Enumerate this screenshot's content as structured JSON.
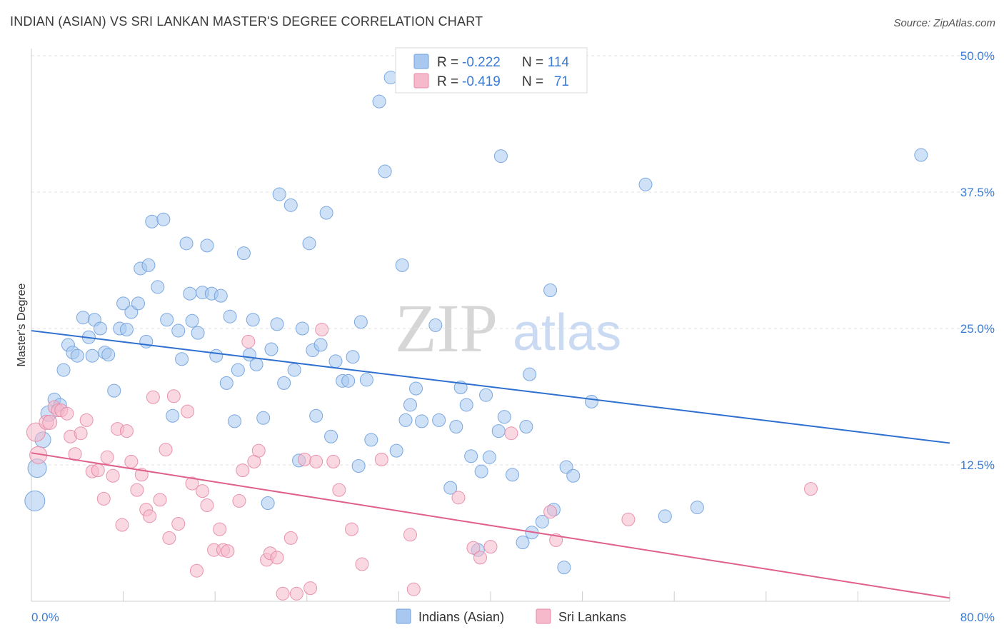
{
  "header": {
    "title": "INDIAN (ASIAN) VS SRI LANKAN MASTER'S DEGREE CORRELATION CHART",
    "source": "Source: ZipAtlas.com"
  },
  "watermark": {
    "zip": "ZIP",
    "atlas": "atlas"
  },
  "legend": {
    "rows": [
      {
        "r_label": "R =",
        "r_value": "-0.222",
        "n_label": "N =",
        "n_value": "114",
        "color": "#a8c8f0"
      },
      {
        "r_label": "R =",
        "r_value": "-0.419",
        "n_label": "N =",
        "n_value": "71",
        "color": "#f6b8cb"
      }
    ]
  },
  "bottom_legend": [
    {
      "label": "Indians (Asian)",
      "color": "#a8c8f0"
    },
    {
      "label": "Sri Lankans",
      "color": "#f6b8cb"
    }
  ],
  "chart_data": {
    "type": "scatter",
    "title": "INDIAN (ASIAN) VS SRI LANKAN MASTER'S DEGREE CORRELATION CHART",
    "ylabel": "Master's Degree",
    "xlabel": "",
    "xlim": [
      0,
      80
    ],
    "ylim": [
      0,
      50
    ],
    "x_tick_labels": [
      "0.0%",
      "80.0%"
    ],
    "y_ticks": [
      12.5,
      25.0,
      37.5,
      50.0
    ],
    "y_tick_labels": [
      "12.5%",
      "25.0%",
      "37.5%",
      "50.0%"
    ],
    "grid": "horizontal dashed",
    "legend_position": "top-center",
    "series": [
      {
        "name": "Indians (Asian)",
        "color": "#a8c8f0",
        "stroke": "#6fa0dc",
        "trend": {
          "x": [
            0,
            80
          ],
          "y": [
            24.8,
            14.5
          ],
          "color": "#2e6fd0"
        },
        "points": [
          [
            0.3,
            9.2,
            14
          ],
          [
            0.5,
            12.2,
            13
          ],
          [
            1.0,
            14.8,
            11
          ],
          [
            1.5,
            17.2,
            11
          ],
          [
            2.0,
            18.5,
            9
          ],
          [
            2.5,
            18.0,
            9
          ],
          [
            2.8,
            21.2,
            9
          ],
          [
            3.2,
            23.5,
            9
          ],
          [
            3.6,
            22.8,
            9
          ],
          [
            4.0,
            22.5,
            9
          ],
          [
            4.5,
            26.0,
            9
          ],
          [
            5.0,
            24.2,
            9
          ],
          [
            5.3,
            22.5,
            9
          ],
          [
            5.5,
            25.8,
            9
          ],
          [
            6.0,
            25.0,
            9
          ],
          [
            6.4,
            22.8,
            9
          ],
          [
            6.7,
            22.6,
            9
          ],
          [
            7.2,
            19.3,
            9
          ],
          [
            7.7,
            25.0,
            9
          ],
          [
            8.0,
            27.3,
            9
          ],
          [
            8.3,
            24.9,
            9
          ],
          [
            8.7,
            26.5,
            9
          ],
          [
            9.3,
            27.3,
            9
          ],
          [
            9.5,
            30.5,
            9
          ],
          [
            10.0,
            23.8,
            9
          ],
          [
            10.2,
            30.8,
            9
          ],
          [
            10.5,
            34.8,
            9
          ],
          [
            11.0,
            28.8,
            9
          ],
          [
            11.5,
            35.0,
            9
          ],
          [
            11.8,
            25.8,
            9
          ],
          [
            12.3,
            17.0,
            9
          ],
          [
            12.8,
            24.8,
            9
          ],
          [
            13.1,
            22.2,
            9
          ],
          [
            13.5,
            32.8,
            9
          ],
          [
            13.8,
            28.2,
            9
          ],
          [
            14.0,
            25.7,
            9
          ],
          [
            14.5,
            24.6,
            9
          ],
          [
            14.9,
            28.3,
            9
          ],
          [
            15.3,
            32.6,
            9
          ],
          [
            15.7,
            28.2,
            9
          ],
          [
            16.1,
            22.5,
            9
          ],
          [
            16.5,
            28.0,
            9
          ],
          [
            17.0,
            20.0,
            9
          ],
          [
            17.3,
            26.1,
            9
          ],
          [
            17.7,
            16.5,
            9
          ],
          [
            18.0,
            21.2,
            9
          ],
          [
            18.5,
            31.9,
            9
          ],
          [
            19.0,
            22.6,
            9
          ],
          [
            19.3,
            25.8,
            9
          ],
          [
            19.6,
            21.7,
            9
          ],
          [
            20.2,
            16.8,
            9
          ],
          [
            20.6,
            9.0,
            9
          ],
          [
            20.9,
            23.1,
            9
          ],
          [
            21.4,
            25.4,
            9
          ],
          [
            21.6,
            37.3,
            9
          ],
          [
            22.0,
            20.0,
            9
          ],
          [
            22.6,
            36.3,
            9
          ],
          [
            22.9,
            21.2,
            9
          ],
          [
            23.3,
            12.9,
            9
          ],
          [
            23.6,
            25.0,
            9
          ],
          [
            24.2,
            32.8,
            9
          ],
          [
            24.5,
            23.0,
            9
          ],
          [
            24.8,
            17.0,
            9
          ],
          [
            25.2,
            23.5,
            9
          ],
          [
            25.7,
            35.6,
            9
          ],
          [
            26.1,
            15.1,
            9
          ],
          [
            26.5,
            22.0,
            9
          ],
          [
            27.1,
            20.2,
            9
          ],
          [
            27.6,
            20.2,
            9
          ],
          [
            28.0,
            22.4,
            9
          ],
          [
            28.5,
            12.4,
            9
          ],
          [
            28.7,
            25.6,
            9
          ],
          [
            29.2,
            20.3,
            9
          ],
          [
            29.6,
            14.8,
            9
          ],
          [
            30.3,
            45.8,
            9
          ],
          [
            30.8,
            39.4,
            9
          ],
          [
            31.3,
            48.0,
            9
          ],
          [
            31.8,
            13.8,
            9
          ],
          [
            32.3,
            30.8,
            9
          ],
          [
            32.6,
            16.6,
            9
          ],
          [
            33.0,
            18.0,
            9
          ],
          [
            33.5,
            19.5,
            9
          ],
          [
            34.0,
            16.5,
            9
          ],
          [
            35.2,
            25.3,
            9
          ],
          [
            35.5,
            16.6,
            9
          ],
          [
            36.5,
            10.4,
            9
          ],
          [
            37.0,
            16.0,
            9
          ],
          [
            37.4,
            19.6,
            9
          ],
          [
            37.9,
            18.0,
            9
          ],
          [
            38.3,
            13.3,
            9
          ],
          [
            38.9,
            4.7,
            9
          ],
          [
            39.2,
            11.9,
            9
          ],
          [
            39.6,
            18.9,
            9
          ],
          [
            39.9,
            13.2,
            9
          ],
          [
            40.7,
            15.6,
            9
          ],
          [
            40.9,
            40.8,
            9
          ],
          [
            41.2,
            16.9,
            9
          ],
          [
            41.9,
            11.6,
            9
          ],
          [
            42.8,
            5.4,
            9
          ],
          [
            43.1,
            16.0,
            9
          ],
          [
            43.4,
            20.8,
            9
          ],
          [
            43.6,
            6.3,
            9
          ],
          [
            44.5,
            7.3,
            9
          ],
          [
            45.2,
            28.5,
            9
          ],
          [
            45.5,
            8.4,
            9
          ],
          [
            46.4,
            3.1,
            9
          ],
          [
            46.6,
            12.3,
            9
          ],
          [
            47.2,
            11.5,
            9
          ],
          [
            48.8,
            18.3,
            9
          ],
          [
            53.5,
            38.2,
            9
          ],
          [
            55.2,
            7.8,
            9
          ],
          [
            58.0,
            8.6,
            9
          ],
          [
            77.5,
            40.9,
            9
          ]
        ]
      },
      {
        "name": "Sri Lankans",
        "color": "#f6b8cb",
        "stroke": "#e58aa6",
        "trend": {
          "x": [
            0,
            80
          ],
          "y": [
            13.6,
            0.3
          ],
          "color": "#e0608c"
        },
        "points": [
          [
            0.4,
            15.5,
            13
          ],
          [
            0.6,
            13.4,
            12
          ],
          [
            1.3,
            16.4,
            10
          ],
          [
            1.6,
            16.4,
            10
          ],
          [
            2.0,
            17.8,
            9
          ],
          [
            2.3,
            17.5,
            9
          ],
          [
            2.6,
            17.5,
            9
          ],
          [
            3.1,
            17.2,
            9
          ],
          [
            3.4,
            15.1,
            9
          ],
          [
            3.8,
            13.5,
            9
          ],
          [
            4.3,
            15.4,
            9
          ],
          [
            4.8,
            16.6,
            9
          ],
          [
            5.3,
            11.9,
            9
          ],
          [
            5.8,
            12.0,
            9
          ],
          [
            6.3,
            9.4,
            9
          ],
          [
            6.6,
            13.2,
            9
          ],
          [
            7.1,
            11.5,
            9
          ],
          [
            7.5,
            15.8,
            9
          ],
          [
            7.9,
            7.0,
            9
          ],
          [
            8.3,
            15.6,
            9
          ],
          [
            8.7,
            12.8,
            9
          ],
          [
            9.2,
            10.2,
            9
          ],
          [
            9.6,
            11.6,
            9
          ],
          [
            10.0,
            8.4,
            9
          ],
          [
            10.3,
            7.8,
            9
          ],
          [
            10.6,
            18.7,
            9
          ],
          [
            11.2,
            9.3,
            9
          ],
          [
            11.7,
            13.9,
            9
          ],
          [
            12.0,
            5.8,
            9
          ],
          [
            12.4,
            18.8,
            9
          ],
          [
            12.8,
            7.1,
            9
          ],
          [
            13.6,
            17.4,
            9
          ],
          [
            14.0,
            10.8,
            9
          ],
          [
            14.4,
            2.8,
            9
          ],
          [
            14.9,
            10.1,
            9
          ],
          [
            15.3,
            8.8,
            9
          ],
          [
            15.9,
            4.7,
            9
          ],
          [
            16.4,
            6.6,
            9
          ],
          [
            16.7,
            4.7,
            9
          ],
          [
            17.1,
            4.6,
            9
          ],
          [
            18.1,
            9.2,
            9
          ],
          [
            18.4,
            12.0,
            9
          ],
          [
            18.9,
            23.8,
            9
          ],
          [
            19.4,
            12.8,
            9
          ],
          [
            19.8,
            13.8,
            9
          ],
          [
            20.5,
            3.8,
            9
          ],
          [
            20.8,
            4.4,
            9
          ],
          [
            21.4,
            4.0,
            9
          ],
          [
            21.9,
            0.7,
            9
          ],
          [
            22.6,
            5.8,
            9
          ],
          [
            23.1,
            0.7,
            9
          ],
          [
            23.8,
            13.0,
            9
          ],
          [
            24.3,
            1.2,
            9
          ],
          [
            24.8,
            12.8,
            9
          ],
          [
            25.3,
            24.9,
            9
          ],
          [
            26.3,
            12.8,
            9
          ],
          [
            26.8,
            10.2,
            9
          ],
          [
            27.9,
            6.6,
            9
          ],
          [
            28.8,
            3.4,
            9
          ],
          [
            30.5,
            13.0,
            9
          ],
          [
            33.0,
            6.1,
            9
          ],
          [
            33.3,
            1.1,
            9
          ],
          [
            37.2,
            9.5,
            9
          ],
          [
            38.5,
            4.9,
            9
          ],
          [
            39.1,
            4.0,
            9
          ],
          [
            40.0,
            5.0,
            9
          ],
          [
            41.8,
            15.4,
            9
          ],
          [
            45.2,
            8.2,
            9
          ],
          [
            45.7,
            5.6,
            9
          ],
          [
            52.0,
            7.5,
            9
          ],
          [
            67.9,
            10.3,
            9
          ]
        ]
      }
    ]
  }
}
